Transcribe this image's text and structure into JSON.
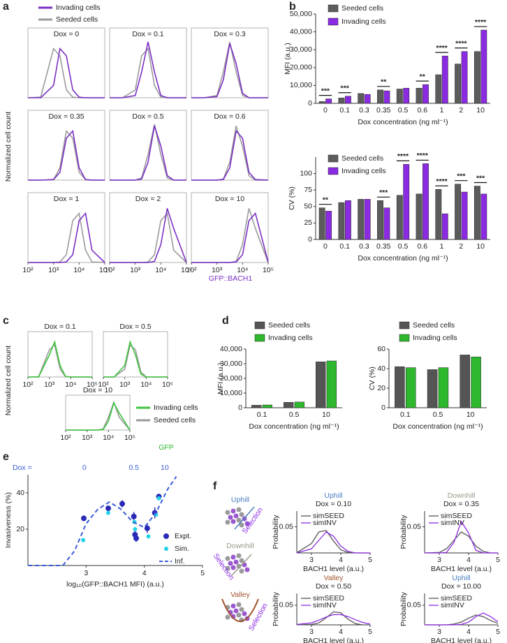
{
  "chart_data": [
    {
      "panel": "a",
      "type": "density",
      "series": [
        {
          "name": "Invading cells",
          "color": "#7a2fc4"
        },
        {
          "name": "Seeded cells",
          "color": "#9a9a9a"
        }
      ],
      "ylabel": "Normalized cell count",
      "xlabel": "GFP::BACH1",
      "xlabel_color": "#7a2fc4",
      "log_x": true,
      "xlim": [
        100,
        100000
      ],
      "xticks": [
        {
          "value": 100,
          "label": "10²"
        },
        {
          "value": 1000,
          "label": "10³"
        },
        {
          "value": 10000,
          "label": "10⁴"
        },
        {
          "value": 100000,
          "label": "10⁵"
        }
      ],
      "x": [
        100,
        316,
        1000,
        1778,
        3162,
        5623,
        10000,
        17783,
        31623,
        100000
      ],
      "panels": [
        {
          "title": "Dox = 0",
          "values": [
            [
              0,
              0,
              0.22,
              0.88,
              0.75,
              0.14,
              0.01,
              0,
              0,
              0
            ],
            [
              0,
              0.01,
              0.88,
              0.75,
              0.14,
              0.01,
              0,
              0,
              0,
              0
            ]
          ]
        },
        {
          "title": "Dox = 0.1",
          "values": [
            [
              0,
              0,
              0.04,
              0.46,
              1,
              0.46,
              0.04,
              0,
              0,
              0
            ],
            [
              0,
              0,
              0.14,
              0.75,
              0.88,
              0.22,
              0.01,
              0,
              0,
              0
            ]
          ]
        },
        {
          "title": "Dox = 0.3",
          "values": [
            [
              0,
              0,
              0.02,
              0.32,
              0.97,
              0.61,
              0.08,
              0,
              0,
              0
            ],
            [
              0,
              0,
              0.04,
              0.46,
              1,
              0.46,
              0.04,
              0,
              0,
              0
            ]
          ]
        },
        {
          "title": "Dox = 0.35",
          "values": [
            [
              0,
              0,
              0.01,
              0.14,
              0.75,
              0.88,
              0.22,
              0.01,
              0,
              0
            ],
            [
              0,
              0,
              0.01,
              0.22,
              0.88,
              0.75,
              0.14,
              0.01,
              0,
              0
            ]
          ]
        },
        {
          "title": "Dox = 0.5",
          "values": [
            [
              0,
              0,
              0,
              0.02,
              0.32,
              0.97,
              0.61,
              0.08,
              0,
              0
            ],
            [
              0,
              0,
              0,
              0.04,
              0.46,
              1,
              0.46,
              0.04,
              0,
              0
            ]
          ]
        },
        {
          "title": "Dox = 0.6",
          "values": [
            [
              0,
              0,
              0,
              0.01,
              0.22,
              0.88,
              0.75,
              0.14,
              0.01,
              0
            ],
            [
              0,
              0,
              0,
              0.02,
              0.32,
              0.97,
              0.61,
              0.08,
              0,
              0
            ]
          ]
        },
        {
          "title": "Dox = 1",
          "values": [
            [
              0,
              0,
              0,
              0,
              0.01,
              0.14,
              0.75,
              0.88,
              0.22,
              0
            ],
            [
              0,
              0,
              0,
              0.01,
              0.14,
              0.75,
              0.88,
              0.22,
              0.01,
              0
            ]
          ]
        },
        {
          "title": "Dox = 2",
          "values": [
            [
              0,
              0,
              0,
              0,
              0,
              0.02,
              0.32,
              0.97,
              0.61,
              0
            ],
            [
              0,
              0,
              0,
              0,
              0.01,
              0.14,
              0.75,
              0.88,
              0.22,
              0
            ]
          ]
        },
        {
          "title": "Dox = 10",
          "values": [
            [
              0,
              0,
              0,
              0,
              0,
              0.01,
              0.14,
              0.75,
              0.88,
              0.01
            ],
            [
              0,
              0,
              0,
              0,
              0,
              0.02,
              0.32,
              0.97,
              0.61,
              0
            ]
          ]
        }
      ]
    },
    {
      "panel": "b",
      "type": "bar",
      "categories": [
        "0",
        "0.1",
        "0.3",
        "0.35",
        "0.5",
        "0.6",
        "1",
        "2",
        "10"
      ],
      "series": [
        {
          "name": "Seeded cells",
          "color": "#5c5c5c",
          "values": [
            1000,
            3000,
            5500,
            7500,
            8000,
            8500,
            16000,
            22000,
            29000
          ]
        },
        {
          "name": "Invading cells",
          "color": "#8a2be2",
          "values": [
            2500,
            4000,
            5000,
            7000,
            8500,
            10500,
            26500,
            29000,
            41000
          ]
        }
      ],
      "significance": [
        "***",
        "***",
        null,
        "**",
        null,
        "**",
        "****",
        "****",
        "****"
      ],
      "ylim": [
        0,
        50000
      ],
      "yticks": [
        0,
        {
          "value": 10000,
          "label": "10,000"
        },
        {
          "value": 20000,
          "label": "20,000"
        },
        {
          "value": 30000,
          "label": "30,000"
        },
        {
          "value": 40000,
          "label": "40,000"
        },
        {
          "value": 50000,
          "label": "50,000"
        }
      ],
      "ylabel": "MFI (a.u.)",
      "xlabel": "Dox concentration (ng ml⁻¹)"
    },
    {
      "type": "bar",
      "categories": [
        "0",
        "0.1",
        "0.3",
        "0.35",
        "0.5",
        "0.6",
        "1",
        "2",
        "10"
      ],
      "series": [
        {
          "name": "Seeded cells",
          "color": "#5c5c5c",
          "values": [
            48,
            56,
            61,
            59,
            67,
            69,
            76,
            84,
            81
          ]
        },
        {
          "name": "Invading cells",
          "color": "#8a2be2",
          "values": [
            43,
            59,
            61,
            48,
            114,
            115,
            39,
            72,
            69
          ]
        }
      ],
      "significance": [
        "**",
        null,
        null,
        "***",
        "****",
        "****",
        "****",
        "***",
        "***"
      ],
      "ylim": [
        0,
        125
      ],
      "yticks": [
        0,
        25,
        50,
        75,
        100
      ],
      "ylabel": "CV (%)",
      "xlabel": "Dox concentration (ng ml⁻¹)"
    },
    {
      "panel": "c",
      "type": "density",
      "series": [
        {
          "name": "Invading cells",
          "color": "#3cc43c"
        },
        {
          "name": "Seeded cells",
          "color": "#9a9a9a"
        }
      ],
      "ylabel": "Normalized cell count",
      "xlabel": "GFP",
      "xlabel_color": "#2db82d",
      "log_x": true,
      "xlim": [
        100,
        100000
      ],
      "xticks": [
        {
          "value": 100,
          "label": "10²"
        },
        {
          "value": 1000,
          "label": "10³"
        },
        {
          "value": 10000,
          "label": "10⁴"
        },
        {
          "value": 100000,
          "label": "10⁵"
        }
      ],
      "x": [
        100,
        316,
        1000,
        1778,
        3162,
        5623,
        10000,
        17783,
        31623,
        100000
      ],
      "panels": [
        {
          "title": "Dox = 0.1",
          "values": [
            [
              0,
              0,
              0.61,
              0.97,
              0.32,
              0.02,
              0,
              0,
              0,
              0
            ],
            [
              0,
              0.01,
              0.75,
              0.88,
              0.22,
              0.01,
              0,
              0,
              0,
              0
            ]
          ]
        },
        {
          "title": "Dox = 0.5",
          "values": [
            [
              0,
              0,
              0.32,
              0.97,
              0.61,
              0.08,
              0,
              0,
              0,
              0
            ],
            [
              0,
              0,
              0.22,
              0.88,
              0.75,
              0.14,
              0,
              0,
              0,
              0
            ]
          ]
        },
        {
          "title": "Dox = 10",
          "values": [
            [
              0,
              0,
              0,
              0,
              0,
              0.02,
              0.32,
              0.97,
              0.61,
              0
            ],
            [
              0,
              0,
              0,
              0,
              0,
              0.04,
              0.46,
              1,
              0.46,
              0
            ]
          ]
        }
      ]
    },
    {
      "panel": "d",
      "type": "bar",
      "categories": [
        "0.1",
        "0.5",
        "10"
      ],
      "series": [
        {
          "name": "Seeded cells",
          "color": "#555555",
          "values": [
            1700,
            3700,
            31300
          ]
        },
        {
          "name": "Invading cells",
          "color": "#2db82d",
          "values": [
            1900,
            3900,
            31900
          ]
        }
      ],
      "ylim": [
        0,
        40000
      ],
      "yticks": [
        0,
        {
          "value": 10000,
          "label": "10,000"
        },
        {
          "value": 20000,
          "label": "20,000"
        },
        {
          "value": 30000,
          "label": "30,000"
        },
        {
          "value": 40000,
          "label": "40,000"
        }
      ],
      "ylabel": "MFI (a.u.)",
      "xlabel": "Dox concentration (ng ml⁻¹)"
    },
    {
      "type": "bar",
      "categories": [
        "0.1",
        "0.5",
        "10"
      ],
      "series": [
        {
          "name": "Seeded cells",
          "color": "#555555",
          "values": [
            42,
            39,
            54
          ]
        },
        {
          "name": "Invading cells",
          "color": "#2db82d",
          "values": [
            41,
            41,
            52
          ]
        }
      ],
      "ylim": [
        0,
        60
      ],
      "yticks": [
        0,
        20,
        40,
        60
      ],
      "ylabel": "CV (%)",
      "xlabel": "Dox concentration (ng ml⁻¹)"
    },
    {
      "panel": "e",
      "type": "scatter",
      "xlim": [
        2,
        5
      ],
      "ylim": [
        0,
        50
      ],
      "xticks": [
        3,
        4,
        5
      ],
      "yticks": [
        20,
        40
      ],
      "ylabel": "Invasiveness (%)",
      "xlabel": "log₁₀(GFP::BACH1 MFI) (a.u.)",
      "top_axis": {
        "label": "Dox =",
        "color": "#3a5bd9",
        "positions": [
          2.97,
          3.82,
          4.35
        ],
        "ticks": [
          "0",
          "0.5",
          "10"
        ]
      },
      "series": [
        {
          "name": "Expt.",
          "color": "#2a2ab8",
          "x": [
            2.96,
            3.38,
            3.62,
            3.82,
            3.84,
            3.86,
            4.05,
            4.18,
            4.25
          ],
          "values": [
            26,
            31.5,
            34,
            27,
            17,
            15,
            20.5,
            29,
            38
          ],
          "errors": [
            1.5,
            1.5,
            2,
            2.5,
            2,
            2,
            2.5,
            3,
            1.5
          ]
        },
        {
          "name": "Sim.",
          "color": "#22d3e6",
          "x": [
            2.95,
            3.38,
            3.83,
            3.84,
            4.07,
            4.2,
            4.25
          ],
          "values": [
            14,
            29,
            24,
            20,
            16,
            28,
            37
          ]
        },
        {
          "name": "Inf.",
          "color": "#3a5bd9",
          "style": "dashed",
          "x": [
            2,
            2.6,
            2.8,
            3,
            3.2,
            3.4,
            3.6,
            3.8,
            4,
            4.2,
            4.4,
            4.55
          ],
          "values": [
            0,
            0,
            8,
            23,
            31,
            35,
            31,
            24,
            21,
            29,
            42,
            49
          ]
        }
      ]
    },
    {
      "panel": "f",
      "type": "line",
      "schematic": [
        {
          "title": "Uphill",
          "color": "#4a7fc1",
          "arrow_label": "Selection"
        },
        {
          "title": "Downhill",
          "color": "#9a9a8a",
          "arrow_label": "Selection"
        },
        {
          "title": "Valley",
          "color": "#a0522d",
          "arrow_label": "Selection"
        }
      ],
      "series": [
        {
          "name": "simSEED",
          "color": "#555555"
        },
        {
          "name": "simINV",
          "color": "#8a2be2"
        }
      ],
      "x": [
        2.5,
        3,
        3.25,
        3.5,
        3.75,
        4,
        4.25,
        4.5,
        4.75,
        5
      ],
      "xlim": [
        2.5,
        5
      ],
      "ylim": [
        0,
        0.08
      ],
      "xticks": [
        3,
        4,
        5
      ],
      "yticks": [
        0.05
      ],
      "xlabel": "BACH1 level (a.u.)",
      "ylabel": "Probability",
      "panels": [
        {
          "title": "Uphill",
          "title_color": "#4a7fc1",
          "subtitle": "Dox = 0.10",
          "values": [
            [
              0.0005,
              0.018,
              0.04,
              0.043,
              0.023,
              0.006,
              0.001,
              0,
              0,
              0
            ],
            [
              0,
              0.008,
              0.024,
              0.04,
              0.032,
              0.013,
              0.003,
              0,
              0,
              0
            ]
          ]
        },
        {
          "title": "Downhill",
          "title_color": "#9a9a8a",
          "subtitle": "Dox = 0.35",
          "values": [
            [
              0,
              0.001,
              0.008,
              0.024,
              0.04,
              0.032,
              0.013,
              0.003,
              0,
              0
            ],
            [
              0,
              0,
              0.001,
              0.02,
              0.06,
              0.038,
              0.005,
              0,
              0,
              0
            ]
          ]
        },
        {
          "title": "Valley",
          "title_color": "#a0522d",
          "subtitle": "Dox = 0.50",
          "values": [
            [
              0,
              0.001,
              0.005,
              0.018,
              0.033,
              0.031,
              0.014,
              0.003,
              0,
              0
            ],
            [
              0.001,
              0.005,
              0.012,
              0.02,
              0.026,
              0.026,
              0.021,
              0.013,
              0.006,
              0.002
            ]
          ]
        },
        {
          "title": "Uphill",
          "title_color": "#4a7fc1",
          "subtitle": "Dox = 10.00",
          "values": [
            [
              0,
              0,
              0,
              0.002,
              0.007,
              0.017,
              0.025,
              0.021,
              0.011,
              0.004
            ],
            [
              0,
              0,
              0,
              0,
              0.001,
              0.007,
              0.021,
              0.03,
              0.021,
              0.008
            ]
          ]
        }
      ]
    }
  ]
}
